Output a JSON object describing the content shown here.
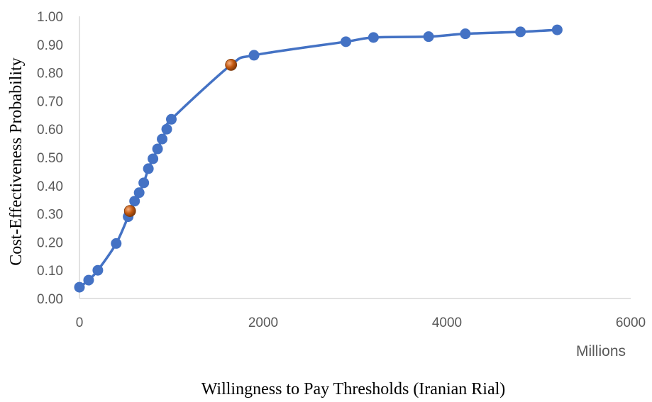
{
  "chart_data": {
    "type": "line",
    "title": "",
    "xlabel": "Willingness to Pay Thresholds (Iranian Rial)",
    "ylabel": "Cost-Effectiveness Probability",
    "x_unit_label": "Millions",
    "xlim": [
      0,
      6000
    ],
    "ylim": [
      0,
      1.0
    ],
    "x_ticks": [
      "0",
      "2000",
      "4000",
      "6000"
    ],
    "y_ticks": [
      "0.00",
      "0.10",
      "0.20",
      "0.30",
      "0.40",
      "0.50",
      "0.60",
      "0.70",
      "0.80",
      "0.90",
      "1.00"
    ],
    "grid": false,
    "legend": "none",
    "line_color": "#4472c4",
    "marker_color": "#4472c4",
    "highlight_color": "#c55a11",
    "series": [
      {
        "x": [
          0,
          100,
          200,
          400,
          530,
          600,
          650,
          700,
          750,
          800,
          850,
          900,
          950,
          1000,
          1650,
          1900,
          2900,
          3200,
          3800,
          4200,
          4800,
          5200
        ],
        "y": [
          0.04,
          0.065,
          0.1,
          0.195,
          0.29,
          0.345,
          0.375,
          0.41,
          0.46,
          0.495,
          0.53,
          0.565,
          0.6,
          0.635,
          0.828,
          0.862,
          0.91,
          0.925,
          0.928,
          0.938,
          0.945,
          0.952
        ]
      }
    ],
    "highlighted_points": [
      {
        "x": 550,
        "y": 0.31
      },
      {
        "x": 1650,
        "y": 0.828
      }
    ]
  }
}
